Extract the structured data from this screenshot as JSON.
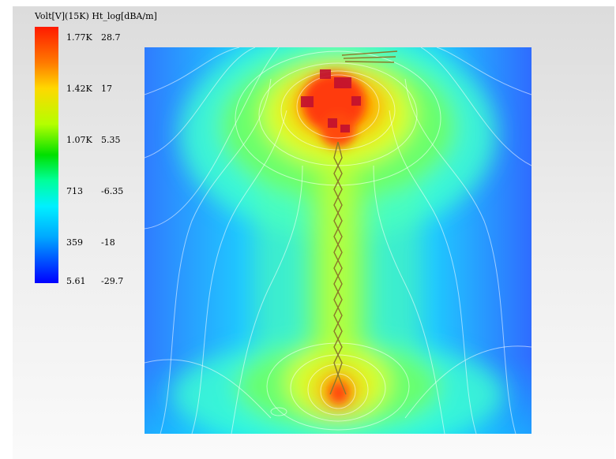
{
  "legend": {
    "title": "Volt[V](15K) Ht_log[dBA/m]",
    "ticks": [
      {
        "volt": "1.77K",
        "ht": "28.7"
      },
      {
        "volt": "1.42K",
        "ht": "17"
      },
      {
        "volt": "1.07K",
        "ht": "5.35"
      },
      {
        "volt": "713",
        "ht": "-6.35"
      },
      {
        "volt": "359",
        "ht": "-18"
      },
      {
        "volt": "5.61",
        "ht": "-29.7"
      }
    ]
  },
  "chart_data": {
    "type": "heatmap",
    "title": "Volt[V](15K) Ht_log[dBA/m]",
    "colorbar": {
      "volt_range": [
        5.61,
        1770
      ],
      "ht_range": [
        -29.7,
        28.7
      ],
      "volt_ticks": [
        1770,
        1420,
        1070,
        713,
        359,
        5.61
      ],
      "ht_ticks": [
        28.7,
        17,
        5.35,
        -6.35,
        -18,
        -29.7
      ]
    },
    "field": "field map with maxima at top-center and bottom-center connected by a vertical high-field strip",
    "colors": [
      "#ff1a00",
      "#ff7a00",
      "#ffd800",
      "#b4ff00",
      "#00e000",
      "#00ff9a",
      "#00f0ff",
      "#00a8ff",
      "#0000ff"
    ]
  }
}
